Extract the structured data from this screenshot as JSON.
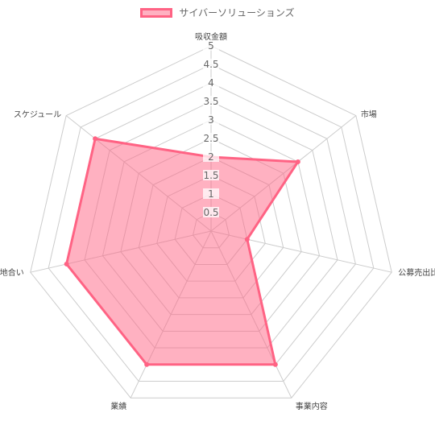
{
  "chart_data": {
    "type": "radar",
    "categories": [
      "吸収金額",
      "市場",
      "公募売出比",
      "事業内容",
      "業績",
      "地合い",
      "スケジュール"
    ],
    "series": [
      {
        "name": "サイバーソリューションズ",
        "values": [
          2,
          3,
          1,
          4,
          4,
          4,
          4
        ]
      }
    ],
    "rlim": [
      0,
      5
    ],
    "ticks": [
      "0.5",
      "1",
      "1.5",
      "2",
      "2.5",
      "3",
      "3.5",
      "4",
      "4.5",
      "5"
    ],
    "colors": {
      "fill": "rgba(255,99,132,0.5)",
      "line": "#ff6384",
      "grid": "#cccccc"
    },
    "legend": "top"
  }
}
